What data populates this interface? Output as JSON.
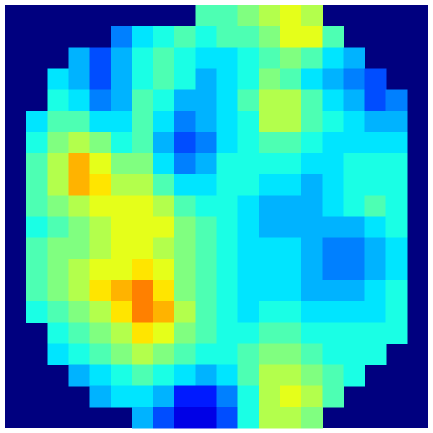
{
  "chart_data": {
    "type": "heatmap",
    "colormap": "jet",
    "zlim": [
      0,
      1
    ],
    "values": [
      [
        null,
        null,
        null,
        null,
        null,
        null,
        null,
        null,
        null,
        0.45,
        0.45,
        0.5,
        0.55,
        0.6,
        0.55,
        null,
        null,
        null,
        null,
        null
      ],
      [
        null,
        null,
        null,
        null,
        null,
        0.25,
        0.35,
        0.4,
        0.45,
        0.4,
        0.45,
        0.45,
        0.5,
        0.6,
        0.6,
        0.45,
        null,
        null,
        null,
        null
      ],
      [
        null,
        null,
        null,
        0.3,
        0.2,
        0.3,
        0.4,
        0.45,
        0.4,
        0.35,
        0.35,
        0.4,
        0.45,
        0.5,
        0.45,
        0.35,
        0.3,
        null,
        null,
        null
      ],
      [
        null,
        null,
        0.35,
        0.3,
        0.2,
        0.3,
        0.4,
        0.45,
        0.4,
        0.3,
        0.35,
        0.4,
        0.5,
        0.45,
        0.35,
        0.3,
        0.25,
        0.2,
        null,
        null
      ],
      [
        null,
        null,
        0.4,
        0.35,
        0.25,
        0.3,
        0.45,
        0.4,
        0.3,
        0.3,
        0.35,
        0.45,
        0.55,
        0.55,
        0.45,
        0.35,
        0.3,
        0.2,
        0.25,
        null
      ],
      [
        null,
        0.35,
        0.45,
        0.45,
        0.35,
        0.35,
        0.45,
        0.35,
        0.25,
        0.3,
        0.35,
        0.4,
        0.55,
        0.55,
        0.45,
        0.4,
        0.35,
        0.3,
        0.3,
        null
      ],
      [
        null,
        0.4,
        0.5,
        0.55,
        0.5,
        0.4,
        0.45,
        0.3,
        0.2,
        0.25,
        0.35,
        0.4,
        0.45,
        0.45,
        0.4,
        0.35,
        0.35,
        0.35,
        0.35,
        null
      ],
      [
        null,
        0.45,
        0.55,
        0.7,
        0.6,
        0.5,
        0.5,
        0.35,
        0.25,
        0.3,
        0.4,
        0.4,
        0.4,
        0.4,
        0.35,
        0.35,
        0.4,
        0.4,
        0.4,
        null
      ],
      [
        null,
        0.45,
        0.55,
        0.7,
        0.65,
        0.55,
        0.55,
        0.45,
        0.35,
        0.35,
        0.4,
        0.4,
        0.35,
        0.35,
        0.3,
        0.35,
        0.4,
        0.4,
        0.4,
        null
      ],
      [
        null,
        0.45,
        0.5,
        0.55,
        0.6,
        0.6,
        0.6,
        0.55,
        0.45,
        0.4,
        0.4,
        0.35,
        0.3,
        0.3,
        0.3,
        0.35,
        0.4,
        0.45,
        0.4,
        null
      ],
      [
        null,
        0.4,
        0.45,
        0.5,
        0.55,
        0.6,
        0.6,
        0.6,
        0.5,
        0.45,
        0.4,
        0.35,
        0.3,
        0.3,
        0.3,
        0.3,
        0.3,
        0.35,
        0.4,
        null
      ],
      [
        null,
        0.45,
        0.5,
        0.5,
        0.55,
        0.6,
        0.6,
        0.55,
        0.5,
        0.45,
        0.4,
        0.35,
        0.35,
        0.35,
        0.3,
        0.25,
        0.25,
        0.3,
        0.35,
        null
      ],
      [
        null,
        0.45,
        0.5,
        0.55,
        0.6,
        0.6,
        0.65,
        0.6,
        0.5,
        0.45,
        0.4,
        0.35,
        0.35,
        0.35,
        0.3,
        0.25,
        0.25,
        0.3,
        0.35,
        null
      ],
      [
        null,
        0.45,
        0.5,
        0.55,
        0.65,
        0.7,
        0.75,
        0.65,
        0.5,
        0.45,
        0.4,
        0.35,
        0.35,
        0.35,
        0.3,
        0.3,
        0.3,
        0.35,
        0.4,
        null
      ],
      [
        null,
        0.4,
        0.45,
        0.5,
        0.55,
        0.65,
        0.75,
        0.7,
        0.55,
        0.45,
        0.4,
        0.35,
        0.4,
        0.4,
        0.35,
        0.35,
        0.35,
        0.35,
        0.4,
        null
      ],
      [
        null,
        null,
        0.4,
        0.45,
        0.5,
        0.55,
        0.65,
        0.6,
        0.5,
        0.45,
        0.4,
        0.4,
        0.45,
        0.45,
        0.4,
        0.4,
        0.4,
        0.4,
        0.4,
        null
      ],
      [
        null,
        null,
        0.35,
        0.4,
        0.45,
        0.5,
        0.55,
        0.5,
        0.45,
        0.4,
        0.4,
        0.45,
        0.5,
        0.5,
        0.45,
        0.4,
        0.4,
        0.4,
        null,
        null
      ],
      [
        null,
        null,
        null,
        0.3,
        0.35,
        0.4,
        0.45,
        0.4,
        0.35,
        0.3,
        0.35,
        0.45,
        0.55,
        0.55,
        0.5,
        0.45,
        0.4,
        null,
        null,
        null
      ],
      [
        null,
        null,
        null,
        null,
        0.3,
        0.35,
        0.35,
        0.3,
        0.15,
        0.15,
        0.25,
        0.4,
        0.55,
        0.6,
        0.55,
        0.45,
        null,
        null,
        null,
        null
      ],
      [
        null,
        null,
        null,
        null,
        null,
        null,
        0.3,
        0.2,
        0.1,
        0.1,
        0.2,
        0.4,
        0.55,
        0.55,
        0.5,
        null,
        null,
        null,
        null,
        null
      ]
    ]
  }
}
